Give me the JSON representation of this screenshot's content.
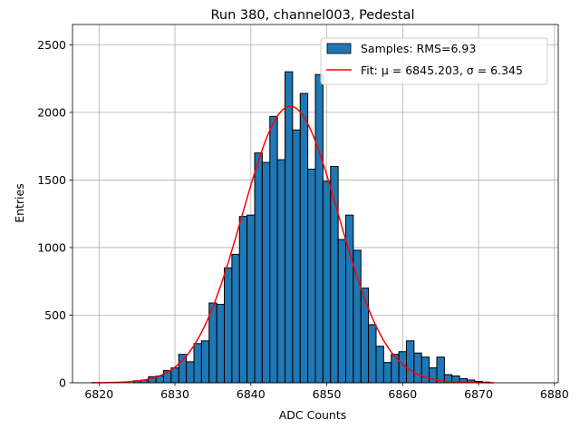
{
  "chart_data": {
    "type": "bar",
    "title": "Run 380, channel003, Pedestal",
    "xlabel": "ADC Counts",
    "ylabel": "Entries",
    "xlim": [
      6816.5,
      6880.5
    ],
    "ylim": [
      0,
      2650
    ],
    "xticks": [
      6820,
      6830,
      6840,
      6850,
      6860,
      6870,
      6880
    ],
    "yticks": [
      0,
      500,
      1000,
      1500,
      2000,
      2500
    ],
    "grid": true,
    "legend": "upper right",
    "bin_start": 6819.5,
    "bin_width": 1,
    "bar_color": "#1f77b4",
    "fit_color": "#ff0000",
    "series": [
      {
        "name": "Samples: RMS=6.93",
        "values": [
          0,
          0,
          0,
          0,
          0,
          15,
          20,
          45,
          50,
          90,
          110,
          210,
          155,
          290,
          310,
          590,
          580,
          850,
          950,
          1230,
          1240,
          1700,
          1630,
          1970,
          1650,
          2300,
          1870,
          2140,
          1580,
          2280,
          1490,
          1600,
          1060,
          1240,
          980,
          700,
          430,
          270,
          150,
          210,
          230,
          310,
          220,
          190,
          110,
          190,
          60,
          50,
          30,
          20,
          10,
          5,
          0
        ]
      }
    ],
    "fit": {
      "name": "Fit: μ = 6845.203, σ = 6.345",
      "mu": 6845.203,
      "sigma": 6.345,
      "peak": 2045,
      "x_range": [
        6819,
        6872
      ]
    }
  }
}
